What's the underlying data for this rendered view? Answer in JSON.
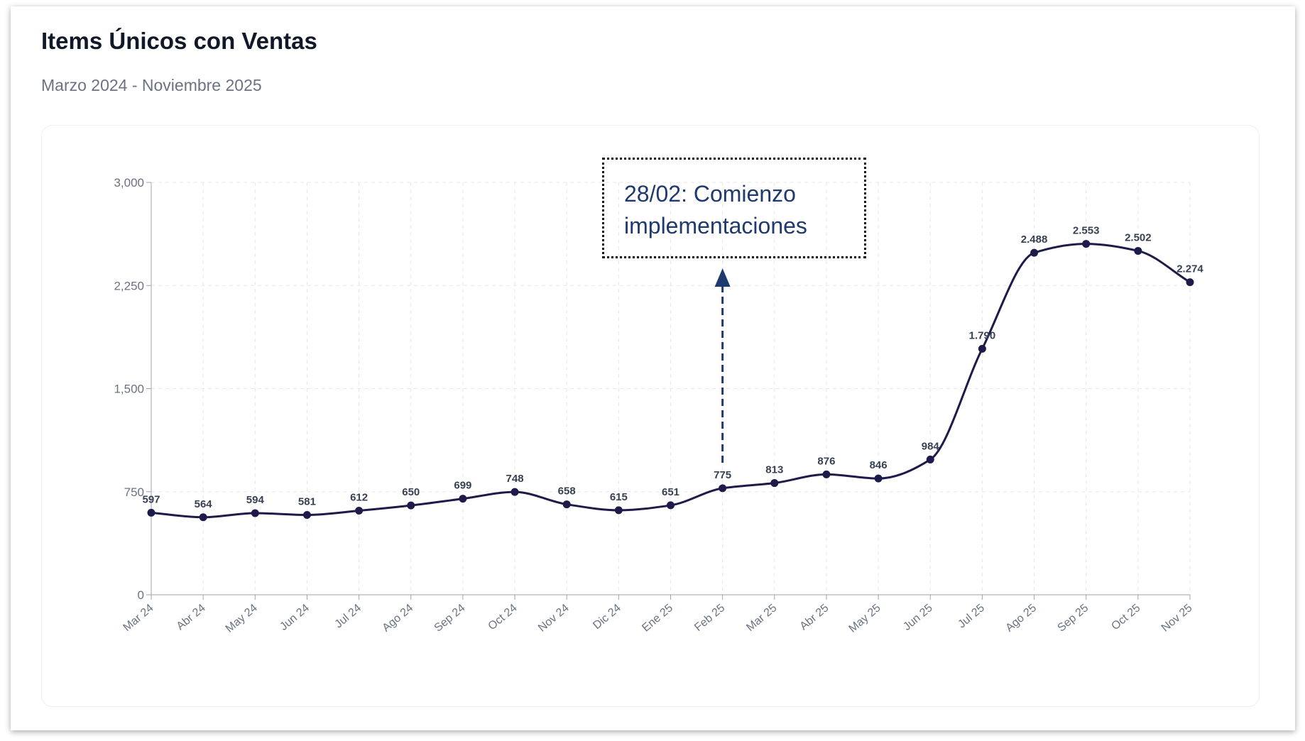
{
  "header": {
    "title": "Items Únicos con Ventas",
    "subtitle": "Marzo 2024 - Noviembre 2025"
  },
  "chart_data": {
    "type": "line",
    "title": "Items Únicos con Ventas",
    "subtitle": "Marzo 2024 - Noviembre 2025",
    "categories": [
      "Mar 24",
      "Abr 24",
      "May 24",
      "Jun 24",
      "Jul 24",
      "Ago 24",
      "Sep 24",
      "Oct 24",
      "Nov 24",
      "Dic 24",
      "Ene 25",
      "Feb 25",
      "Mar 25",
      "Abr 25",
      "May 25",
      "Jun 25",
      "Jul 25",
      "Ago 25",
      "Sep 25",
      "Oct 25",
      "Nov 25"
    ],
    "values": [
      597,
      564,
      594,
      581,
      612,
      650,
      699,
      748,
      658,
      615,
      651,
      775,
      813,
      876,
      846,
      984,
      1790,
      2488,
      2553,
      2502,
      2274
    ],
    "data_labels": [
      "597",
      "564",
      "594",
      "581",
      "612",
      "650",
      "699",
      "748",
      "658",
      "615",
      "651",
      "775",
      "813",
      "876",
      "846",
      "984",
      "1.790",
      "2.488",
      "2.553",
      "2.502",
      "2.274"
    ],
    "ylim": [
      0,
      3000
    ],
    "yticks": [
      0,
      750,
      1500,
      2250,
      3000
    ],
    "ytick_labels": [
      "0",
      "750",
      "1,500",
      "2,250",
      "3,000"
    ],
    "grid": true,
    "line_color": "#1e1b4b",
    "annotation": {
      "text_line1": "28/02: Comienzo",
      "text_line2": "implementaciones",
      "points_to": "Feb 25",
      "color": "#1e3a6e"
    }
  }
}
